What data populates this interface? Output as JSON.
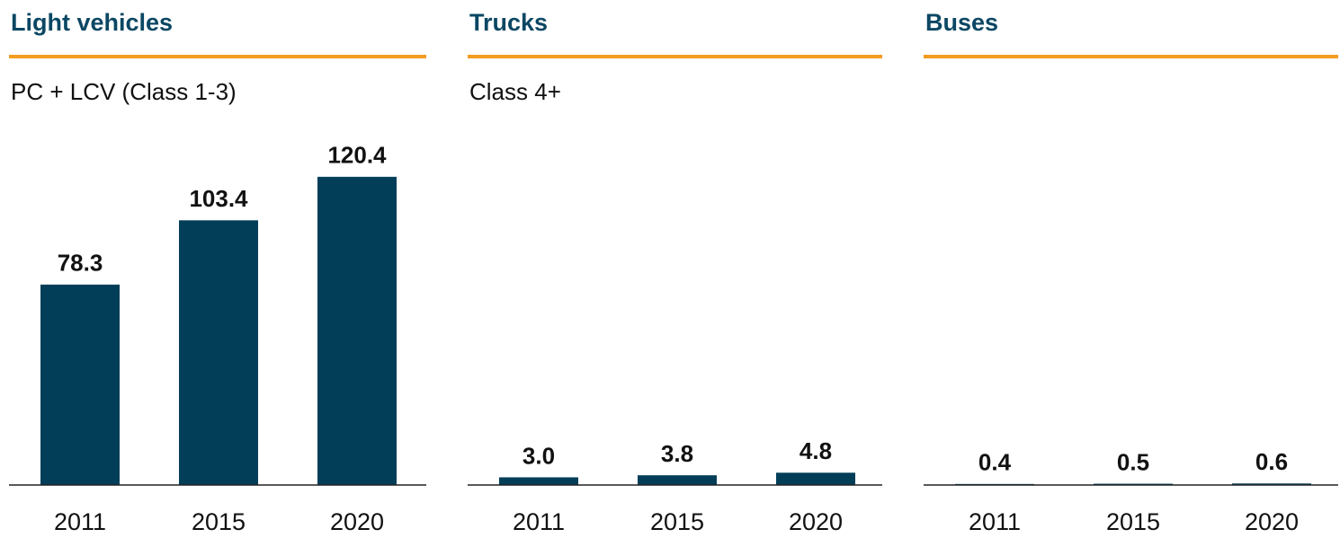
{
  "chart_data": [
    {
      "type": "bar",
      "title": "Light vehicles",
      "subtitle": "PC + LCV (Class 1-3)",
      "categories": [
        "2011",
        "2015",
        "2020"
      ],
      "values": [
        78.3,
        103.4,
        120.4
      ],
      "color": "#023e58",
      "ylim": [
        0,
        140
      ]
    },
    {
      "type": "bar",
      "title": "Trucks",
      "subtitle": "Class 4+",
      "categories": [
        "2011",
        "2015",
        "2020"
      ],
      "values": [
        3.0,
        3.8,
        4.8
      ],
      "value_labels": [
        "3.0",
        "3.8",
        "4.8"
      ],
      "color": "#023e58",
      "ylim": [
        0,
        140
      ]
    },
    {
      "type": "bar",
      "title": "Buses",
      "categories": [
        "2011",
        "2015",
        "2020"
      ],
      "values": [
        0.4,
        0.5,
        0.6
      ],
      "color": "#023e58",
      "ylim": [
        0,
        140
      ]
    }
  ]
}
